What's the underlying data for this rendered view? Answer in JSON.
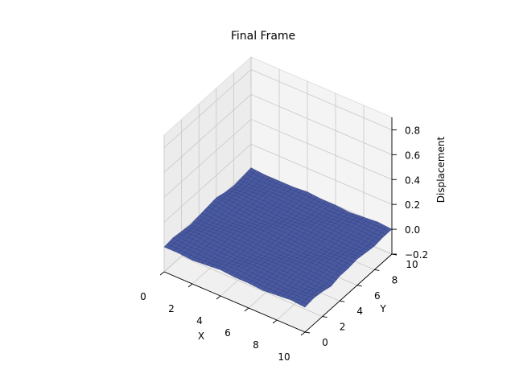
{
  "chart_data": {
    "type": "surface",
    "title": "Final Frame",
    "xlabel": "X",
    "ylabel": "Y",
    "zlabel": "Displacement",
    "xlim": [
      0,
      10
    ],
    "ylim": [
      0,
      10
    ],
    "zlim": [
      -0.2,
      0.9
    ],
    "x_ticks": [
      0,
      2,
      4,
      6,
      8,
      10
    ],
    "y_ticks": [
      0,
      2,
      4,
      6,
      8,
      10
    ],
    "z_ticks": [
      -0.2,
      0.0,
      0.2,
      0.4,
      0.6,
      0.8
    ],
    "z_tick_labels": [
      "−0.2",
      "0.0",
      "0.2",
      "0.4",
      "0.6",
      "0.8"
    ],
    "grid": true,
    "surface_color": "#4a5aa0",
    "edge_color": "#2a3478",
    "pane_color": "#f2f2f2",
    "grid_color": "#c8c8c8",
    "mesh_resolution": 30,
    "surface_z": [
      [
        0.0,
        0.01,
        0.0,
        -0.01,
        0.0,
        0.01,
        0.02,
        0.0,
        -0.01,
        0.0,
        0.01
      ],
      [
        0.0,
        0.0,
        0.01,
        0.0,
        -0.01,
        0.0,
        0.01,
        0.01,
        0.0,
        -0.01,
        0.0
      ],
      [
        -0.01,
        0.0,
        0.0,
        0.01,
        0.0,
        -0.01,
        0.0,
        0.0,
        0.01,
        0.0,
        0.0
      ],
      [
        0.0,
        -0.01,
        0.0,
        0.0,
        0.01,
        0.0,
        -0.01,
        0.0,
        0.0,
        0.01,
        0.0
      ],
      [
        0.01,
        0.0,
        -0.01,
        0.0,
        0.0,
        0.01,
        0.0,
        -0.01,
        0.0,
        0.0,
        0.01
      ],
      [
        0.0,
        0.01,
        0.0,
        -0.01,
        0.0,
        0.0,
        0.01,
        0.0,
        -0.01,
        0.0,
        0.0
      ],
      [
        0.0,
        0.0,
        0.01,
        0.0,
        -0.01,
        0.0,
        0.0,
        0.01,
        0.0,
        -0.01,
        0.0
      ],
      [
        -0.01,
        0.0,
        0.0,
        0.01,
        0.0,
        -0.01,
        0.0,
        0.0,
        0.01,
        0.0,
        -0.01
      ],
      [
        0.0,
        -0.01,
        0.0,
        0.0,
        0.01,
        0.0,
        -0.01,
        0.0,
        0.0,
        0.01,
        0.0
      ],
      [
        0.01,
        0.0,
        -0.01,
        0.0,
        0.0,
        0.01,
        0.0,
        -0.01,
        0.0,
        0.0,
        0.01
      ],
      [
        0.0,
        0.01,
        0.0,
        -0.02,
        0.0,
        0.0,
        0.01,
        0.0,
        -0.01,
        0.0,
        0.0
      ]
    ]
  }
}
